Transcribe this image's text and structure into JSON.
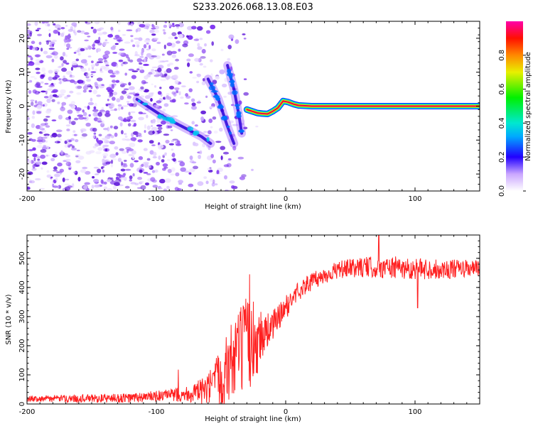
{
  "title": "S233.2026.068.13.08.E03",
  "colors": {
    "axis": "#000000",
    "snr_line": "#ff2020",
    "carrier_core": "#e8004a",
    "carrier_glow": "#00e0ff",
    "speckle": "#7a2ef0"
  },
  "chart_data": [
    {
      "type": "heatmap",
      "name": "spectrogram",
      "xlabel": "Height of straight line (km)",
      "ylabel": "Frequency (Hz)",
      "xlim": [
        -200,
        150
      ],
      "ylim": [
        -25,
        25
      ],
      "xticks": [
        -200,
        -100,
        0,
        100
      ],
      "xtick_labels": [
        "-200",
        "-100",
        "0",
        "100"
      ],
      "yticks": [
        -20,
        -10,
        0,
        10,
        20
      ],
      "ytick_labels": [
        "-20",
        "-10",
        "0",
        "10",
        "20"
      ],
      "colorbar": {
        "label": "Normalized spectral amplitude",
        "range": [
          0,
          1
        ],
        "ticks": [
          0.0,
          0.2,
          0.4,
          0.6,
          0.8
        ],
        "tick_labels": [
          "0.0",
          "0.2",
          "0.4",
          "0.6",
          "0.8"
        ]
      },
      "carrier_path": {
        "x": [
          -30,
          -26,
          -22,
          -18,
          -14,
          -10,
          -6,
          -2,
          2,
          6,
          10,
          20,
          40,
          80,
          150
        ],
        "y": [
          -1,
          -1.5,
          -2,
          -2.2,
          -2.3,
          -1.5,
          -0.5,
          1.5,
          1.2,
          0.6,
          0.2,
          0,
          0,
          0,
          0
        ]
      },
      "diagonal_streaks": [
        {
          "x": [
            -115,
            -95,
            -80,
            -65,
            -58
          ],
          "y": [
            2,
            -3,
            -6,
            -9,
            -11
          ]
        },
        {
          "x": [
            -60,
            -52,
            -45,
            -40
          ],
          "y": [
            8,
            2,
            -6,
            -11
          ]
        },
        {
          "x": [
            -45,
            -40,
            -36,
            -34
          ],
          "y": [
            12,
            5,
            -3,
            -8
          ]
        }
      ]
    },
    {
      "type": "line",
      "name": "snr",
      "xlabel": "Height of straight line (km)",
      "ylabel": "SNR (10 * v/v)",
      "xlim": [
        -200,
        150
      ],
      "ylim": [
        0,
        580
      ],
      "xticks": [
        -200,
        -100,
        0,
        100
      ],
      "xtick_labels": [
        "-200",
        "-100",
        "0",
        "100"
      ],
      "yticks": [
        0,
        100,
        200,
        300,
        400,
        500
      ],
      "ytick_labels": [
        "0",
        "100",
        "200",
        "300",
        "400",
        "500"
      ],
      "envelope": {
        "x": [
          -200,
          -120,
          -90,
          -75,
          -60,
          -50,
          -40,
          -30,
          -20,
          -10,
          0,
          10,
          20,
          30,
          40,
          60,
          80,
          100,
          120,
          150
        ],
        "y": [
          18,
          20,
          30,
          35,
          45,
          90,
          160,
          200,
          230,
          270,
          330,
          390,
          420,
          440,
          460,
          470,
          468,
          465,
          462,
          465
        ]
      },
      "noise_amplitude": {
        "x": [
          -200,
          -90,
          -70,
          -60,
          -45,
          -30,
          -22,
          -15,
          0,
          20,
          40,
          80,
          150
        ],
        "y": [
          10,
          20,
          35,
          60,
          130,
          170,
          130,
          60,
          40,
          30,
          30,
          40,
          30
        ]
      },
      "spikes": [
        {
          "x": -83,
          "y": 118
        },
        {
          "x": -28,
          "y": 445
        },
        {
          "x": 72,
          "y": 580
        },
        {
          "x": 98,
          "y": 440
        },
        {
          "x": 102,
          "y": 330
        }
      ]
    }
  ]
}
